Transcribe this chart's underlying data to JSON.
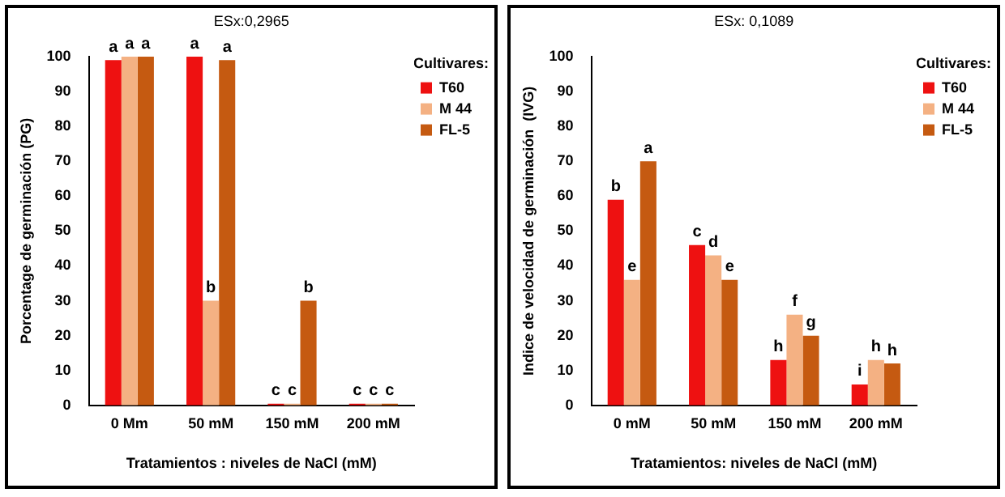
{
  "chart_data": [
    {
      "type": "bar",
      "categories": [
        "0 Mm",
        "50 mM",
        "150 mM",
        "200 mM"
      ],
      "ylabel": "Porcentage de germinación (PG)",
      "xlabel": "Tratamientos : niveles de NaCl (mM)",
      "legend_title": "Cultivares:",
      "legend": "top right",
      "annotations": [
        "ESx:0,2965"
      ],
      "ylim": [
        0,
        100
      ],
      "yticks": [
        0,
        10,
        20,
        30,
        40,
        50,
        60,
        70,
        80,
        90,
        100
      ],
      "grid": false,
      "series": [
        {
          "name": "T60",
          "color": "#ee1111",
          "values": [
            99,
            100,
            0,
            0
          ],
          "value_labels": [
            "a",
            "a",
            "c",
            "c"
          ]
        },
        {
          "name": "M 44",
          "color": "#f4b183",
          "values": [
            100,
            30,
            0,
            0
          ],
          "value_labels": [
            "a",
            "b",
            "c",
            "c"
          ]
        },
        {
          "name": "FL-5",
          "color": "#c55a11",
          "values": [
            100,
            99,
            30,
            0
          ],
          "value_labels": [
            "a",
            "a",
            "b",
            "c"
          ]
        }
      ]
    },
    {
      "type": "bar",
      "categories": [
        "0 mM",
        "50 mM",
        "150 mM",
        "200 mM"
      ],
      "ylabel": "Indice de velocidad de germinación  (IVG)",
      "xlabel": "Tratamientos: niveles de NaCl (mM)",
      "legend_title": "Cultivares:",
      "legend": "top right",
      "annotations": [
        "ESx: 0,1089"
      ],
      "ylim": [
        0,
        100
      ],
      "yticks": [
        0,
        10,
        20,
        30,
        40,
        50,
        60,
        70,
        80,
        90,
        100
      ],
      "grid": false,
      "series": [
        {
          "name": "T60",
          "color": "#ee1111",
          "values": [
            59,
            46,
            13,
            6
          ],
          "value_labels": [
            "b",
            "c",
            "h",
            "i"
          ]
        },
        {
          "name": "M 44",
          "color": "#f4b183",
          "values": [
            36,
            43,
            26,
            13
          ],
          "value_labels": [
            "e",
            "d",
            "f",
            "h"
          ]
        },
        {
          "name": "FL-5",
          "color": "#c55a11",
          "values": [
            70,
            36,
            20,
            12
          ],
          "value_labels": [
            "a",
            "e",
            "g",
            "h"
          ]
        }
      ]
    }
  ]
}
